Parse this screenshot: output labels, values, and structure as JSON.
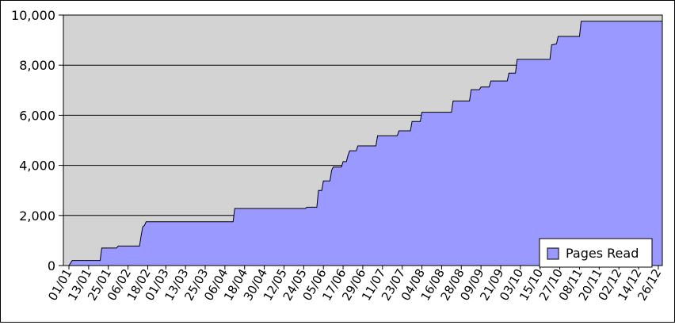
{
  "chart_data": {
    "type": "area",
    "title": "",
    "xlabel": "",
    "ylabel": "",
    "ylim": [
      0,
      10000
    ],
    "y_ticks": [
      0,
      2000,
      4000,
      6000,
      8000,
      10000
    ],
    "y_tick_labels": [
      "0",
      "2,000",
      "4,000",
      "6,000",
      "8,000",
      "10,000"
    ],
    "x_tick_labels": [
      "01/01",
      "13/01",
      "25/01",
      "06/02",
      "18/02",
      "01/03",
      "13/03",
      "25/03",
      "06/04",
      "18/04",
      "30/04",
      "12/05",
      "24/05",
      "05/06",
      "17/06",
      "29/06",
      "11/07",
      "23/07",
      "04/08",
      "16/08",
      "28/08",
      "09/09",
      "21/09",
      "03/10",
      "15/10",
      "27/10",
      "08/11",
      "20/11",
      "02/12",
      "14/12",
      "26/12"
    ],
    "grid": true,
    "plot_background": "#d3d3d3",
    "legend": {
      "position": "bottom-right",
      "entries": [
        "Pages Read"
      ]
    },
    "series": [
      {
        "name": "Pages Read",
        "color": "#9999ff",
        "points": [
          [
            "01/01",
            0
          ],
          [
            "03/01",
            200
          ],
          [
            "20/01",
            200
          ],
          [
            "21/01",
            700
          ],
          [
            "30/01",
            700
          ],
          [
            "31/01",
            780
          ],
          [
            "13/02",
            780
          ],
          [
            "14/02",
            1200
          ],
          [
            "15/02",
            1550
          ],
          [
            "16/02",
            1600
          ],
          [
            "17/02",
            1750
          ],
          [
            "11/04",
            1750
          ],
          [
            "12/04",
            2280
          ],
          [
            "25/05",
            2280
          ],
          [
            "26/05",
            2330
          ],
          [
            "01/06",
            2330
          ],
          [
            "02/06",
            3000
          ],
          [
            "04/06",
            3000
          ],
          [
            "05/06",
            3380
          ],
          [
            "09/06",
            3380
          ],
          [
            "10/06",
            3800
          ],
          [
            "11/06",
            3930
          ],
          [
            "16/06",
            3930
          ],
          [
            "17/06",
            4150
          ],
          [
            "19/06",
            4150
          ],
          [
            "20/06",
            4400
          ],
          [
            "21/06",
            4580
          ],
          [
            "25/06",
            4580
          ],
          [
            "26/06",
            4780
          ],
          [
            "07/07",
            4780
          ],
          [
            "08/07",
            5180
          ],
          [
            "20/07",
            5180
          ],
          [
            "21/07",
            5380
          ],
          [
            "28/07",
            5380
          ],
          [
            "29/07",
            5750
          ],
          [
            "03/08",
            5750
          ],
          [
            "04/08",
            6120
          ],
          [
            "22/08",
            6120
          ],
          [
            "23/08",
            6570
          ],
          [
            "02/09",
            6570
          ],
          [
            "03/09",
            7020
          ],
          [
            "08/09",
            7020
          ],
          [
            "09/09",
            7130
          ],
          [
            "14/09",
            7130
          ],
          [
            "15/09",
            7370
          ],
          [
            "25/09",
            7370
          ],
          [
            "26/09",
            7680
          ],
          [
            "30/09",
            7680
          ],
          [
            "01/10",
            8230
          ],
          [
            "21/10",
            8230
          ],
          [
            "22/10",
            8810
          ],
          [
            "25/10",
            8850
          ],
          [
            "26/10",
            9150
          ],
          [
            "08/11",
            9150
          ],
          [
            "09/11",
            9750
          ],
          [
            "12/11",
            9750
          ]
        ]
      }
    ]
  }
}
